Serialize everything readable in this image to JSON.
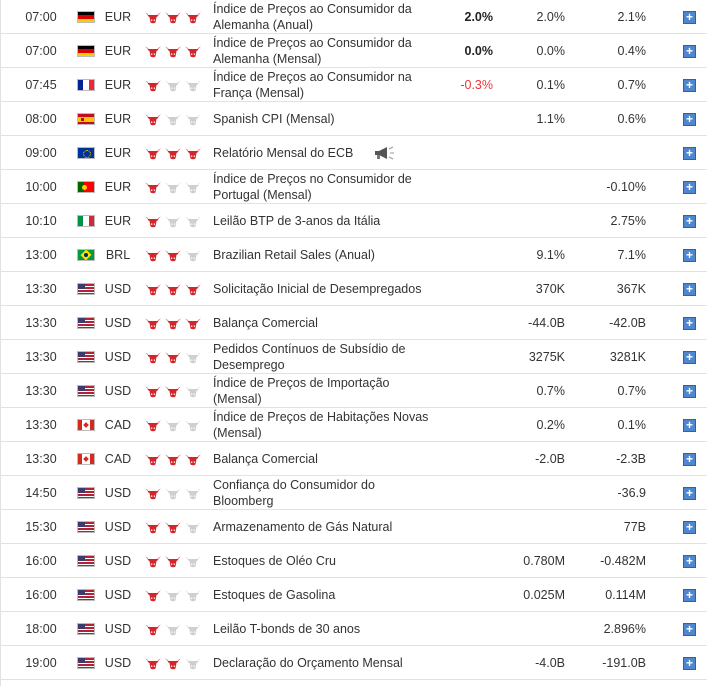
{
  "colors": {
    "bull_active": "#d3262b",
    "bull_inactive": "#cfcfcf",
    "negative_value": "#e8373a",
    "expand_button": "#4e86cf"
  },
  "expand_label": "+",
  "events": [
    {
      "time": "07:00",
      "flag": "de",
      "currency": "EUR",
      "importance": 3,
      "event": "Índice de Preços ao Consumidor da Alemanha (Anual)",
      "actual": "2.0%",
      "actual_negative": false,
      "forecast": "2.0%",
      "previous": "2.1%"
    },
    {
      "time": "07:00",
      "flag": "de",
      "currency": "EUR",
      "importance": 3,
      "event": "Índice de Preços ao Consumidor da Alemanha (Mensal)",
      "actual": "0.0%",
      "actual_negative": false,
      "forecast": "0.0%",
      "previous": "0.4%"
    },
    {
      "time": "07:45",
      "flag": "fr",
      "currency": "EUR",
      "importance": 1,
      "event": "Índice de Preços ao Consumidor na França (Mensal)",
      "actual": "-0.3%",
      "actual_negative": true,
      "forecast": "0.1%",
      "previous": "0.7%"
    },
    {
      "time": "08:00",
      "flag": "es",
      "currency": "EUR",
      "importance": 1,
      "event": "Spanish CPI (Mensal)",
      "actual": "",
      "actual_negative": false,
      "forecast": "1.1%",
      "previous": "0.6%"
    },
    {
      "time": "09:00",
      "flag": "eu",
      "currency": "EUR",
      "importance": 3,
      "event": "Relatório Mensal do ECB",
      "speech": true,
      "actual": "",
      "actual_negative": false,
      "forecast": "",
      "previous": ""
    },
    {
      "time": "10:00",
      "flag": "pt",
      "currency": "EUR",
      "importance": 1,
      "event": "Índice de Preços no Consumidor de Portugal (Mensal)",
      "actual": "",
      "actual_negative": false,
      "forecast": "",
      "previous": "-0.10%"
    },
    {
      "time": "10:10",
      "flag": "it",
      "currency": "EUR",
      "importance": 1,
      "event": "Leilão BTP de 3-anos da Itália",
      "actual": "",
      "actual_negative": false,
      "forecast": "",
      "previous": "2.75%"
    },
    {
      "time": "13:00",
      "flag": "br",
      "currency": "BRL",
      "importance": 2,
      "event": "Brazilian Retail Sales (Anual)",
      "actual": "",
      "actual_negative": false,
      "forecast": "9.1%",
      "previous": "7.1%"
    },
    {
      "time": "13:30",
      "flag": "us",
      "currency": "USD",
      "importance": 3,
      "event": "Solicitação Inicial de Desempregados",
      "actual": "",
      "actual_negative": false,
      "forecast": "370K",
      "previous": "367K"
    },
    {
      "time": "13:30",
      "flag": "us",
      "currency": "USD",
      "importance": 3,
      "event": "Balança Comercial",
      "actual": "",
      "actual_negative": false,
      "forecast": "-44.0B",
      "previous": "-42.0B"
    },
    {
      "time": "13:30",
      "flag": "us",
      "currency": "USD",
      "importance": 2,
      "event": "Pedidos Contínuos de Subsídio de Desemprego",
      "actual": "",
      "actual_negative": false,
      "forecast": "3275K",
      "previous": "3281K"
    },
    {
      "time": "13:30",
      "flag": "us",
      "currency": "USD",
      "importance": 2,
      "event": "Índice de Preços de Importação (Mensal)",
      "actual": "",
      "actual_negative": false,
      "forecast": "0.7%",
      "previous": "0.7%"
    },
    {
      "time": "13:30",
      "flag": "ca",
      "currency": "CAD",
      "importance": 1,
      "event": "Índice de Preços de Habitações Novas (Mensal)",
      "actual": "",
      "actual_negative": false,
      "forecast": "0.2%",
      "previous": "0.1%"
    },
    {
      "time": "13:30",
      "flag": "ca",
      "currency": "CAD",
      "importance": 3,
      "event": "Balança Comercial",
      "actual": "",
      "actual_negative": false,
      "forecast": "-2.0B",
      "previous": "-2.3B"
    },
    {
      "time": "14:50",
      "flag": "us",
      "currency": "USD",
      "importance": 1,
      "event": "Confiança do Consumidor do Bloomberg",
      "actual": "",
      "actual_negative": false,
      "forecast": "",
      "previous": "-36.9"
    },
    {
      "time": "15:30",
      "flag": "us",
      "currency": "USD",
      "importance": 2,
      "event": "Armazenamento de Gás Natural",
      "actual": "",
      "actual_negative": false,
      "forecast": "",
      "previous": "77B"
    },
    {
      "time": "16:00",
      "flag": "us",
      "currency": "USD",
      "importance": 2,
      "event": "Estoques de Oléo Cru",
      "actual": "",
      "actual_negative": false,
      "forecast": "0.780M",
      "previous": "-0.482M"
    },
    {
      "time": "16:00",
      "flag": "us",
      "currency": "USD",
      "importance": 1,
      "event": "Estoques de Gasolina",
      "actual": "",
      "actual_negative": false,
      "forecast": "0.025M",
      "previous": "0.114M"
    },
    {
      "time": "18:00",
      "flag": "us",
      "currency": "USD",
      "importance": 1,
      "event": "Leilão T-bonds de 30 anos",
      "actual": "",
      "actual_negative": false,
      "forecast": "",
      "previous": "2.896%"
    },
    {
      "time": "19:00",
      "flag": "us",
      "currency": "USD",
      "importance": 2,
      "event": "Declaração do Orçamento Mensal",
      "actual": "",
      "actual_negative": false,
      "forecast": "-4.0B",
      "previous": "-191.0B"
    }
  ]
}
